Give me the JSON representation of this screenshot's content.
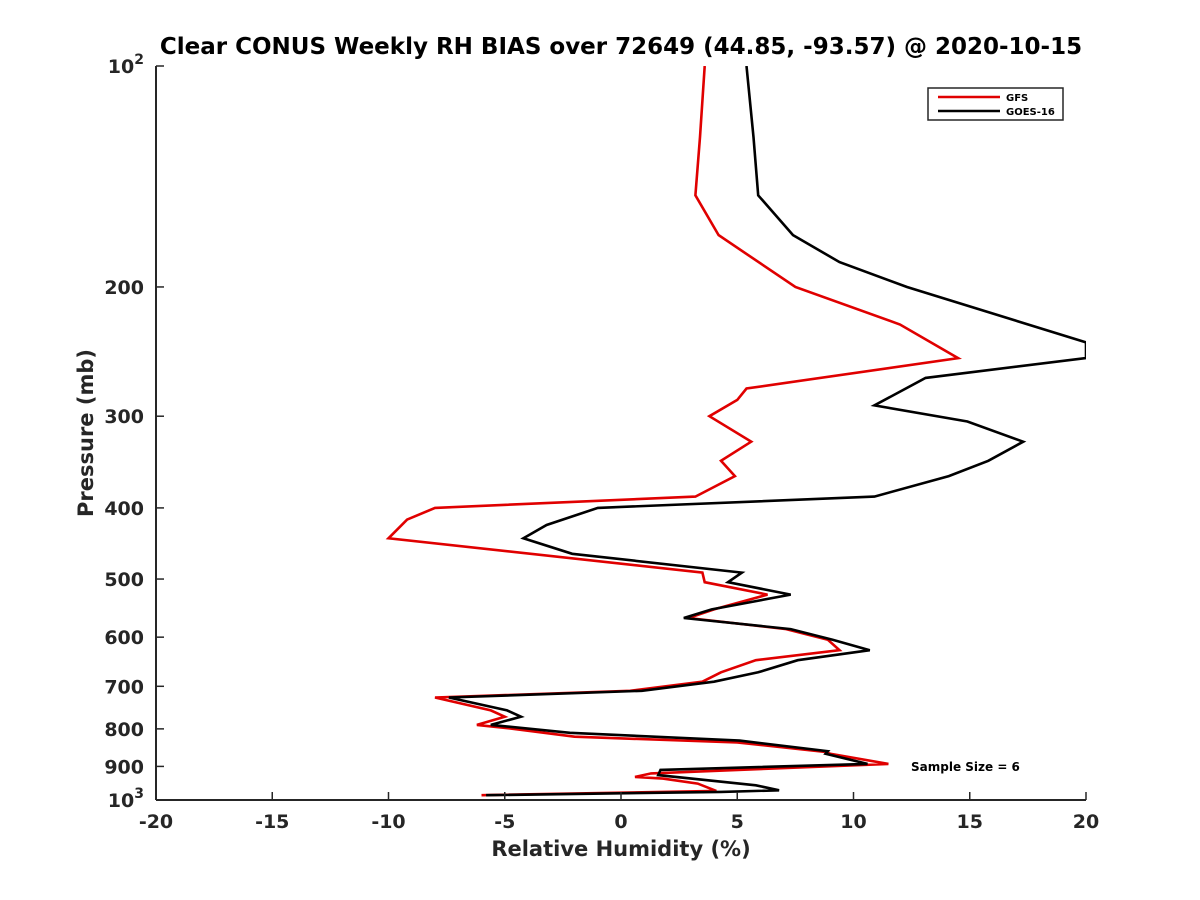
{
  "chart_data": {
    "type": "line",
    "title": "Clear CONUS Weekly RH BIAS over 72649 (44.85, -93.57) @ 2020-10-15",
    "xlabel": "Relative Humidity (%)",
    "ylabel": "Pressure (mb)",
    "xlim": [
      -20,
      20
    ],
    "ylim": [
      100,
      1000
    ],
    "yscale": "log",
    "y_reversed": true,
    "x_ticks": [
      "-20",
      "-15",
      "-10",
      "-5",
      "0",
      "5",
      "10",
      "15",
      "20"
    ],
    "y_ticks": [
      {
        "value": 100,
        "base": "10",
        "exp": "2"
      },
      {
        "value": 200,
        "label": "200"
      },
      {
        "value": 300,
        "label": "300"
      },
      {
        "value": 400,
        "label": "400"
      },
      {
        "value": 500,
        "label": "500"
      },
      {
        "value": 600,
        "label": "600"
      },
      {
        "value": 700,
        "label": "700"
      },
      {
        "value": 800,
        "label": "800"
      },
      {
        "value": 900,
        "label": "900"
      },
      {
        "value": 1000,
        "base": "10",
        "exp": "3"
      }
    ],
    "grid": false,
    "legend_position": "top-right",
    "annotation": "Sample Size = 6",
    "series": [
      {
        "name": "GFS",
        "color": "#e00000",
        "points": [
          {
            "x": 3.6,
            "y": 100
          },
          {
            "x": 3.4,
            "y": 125
          },
          {
            "x": 3.2,
            "y": 150
          },
          {
            "x": 4.2,
            "y": 170
          },
          {
            "x": 7.5,
            "y": 200
          },
          {
            "x": 12.0,
            "y": 225
          },
          {
            "x": 14.5,
            "y": 250
          },
          {
            "x": 5.4,
            "y": 275
          },
          {
            "x": 5.0,
            "y": 285
          },
          {
            "x": 3.8,
            "y": 300
          },
          {
            "x": 5.6,
            "y": 325
          },
          {
            "x": 4.3,
            "y": 345
          },
          {
            "x": 4.9,
            "y": 362
          },
          {
            "x": 3.2,
            "y": 386
          },
          {
            "x": -8.0,
            "y": 400
          },
          {
            "x": -9.2,
            "y": 415
          },
          {
            "x": -10.0,
            "y": 440
          },
          {
            "x": 3.5,
            "y": 490
          },
          {
            "x": 3.6,
            "y": 505
          },
          {
            "x": 6.3,
            "y": 525
          },
          {
            "x": 4.0,
            "y": 550
          },
          {
            "x": 2.9,
            "y": 565
          },
          {
            "x": 7.1,
            "y": 585
          },
          {
            "x": 8.9,
            "y": 605
          },
          {
            "x": 9.4,
            "y": 625
          },
          {
            "x": 5.8,
            "y": 645
          },
          {
            "x": 4.3,
            "y": 670
          },
          {
            "x": 3.5,
            "y": 690
          },
          {
            "x": 0.4,
            "y": 710
          },
          {
            "x": -8.0,
            "y": 725
          },
          {
            "x": -5.6,
            "y": 755
          },
          {
            "x": -5.0,
            "y": 770
          },
          {
            "x": -6.2,
            "y": 790
          },
          {
            "x": -4.6,
            "y": 800
          },
          {
            "x": -2.0,
            "y": 820
          },
          {
            "x": 5.0,
            "y": 835
          },
          {
            "x": 8.8,
            "y": 860
          },
          {
            "x": 9.0,
            "y": 865
          },
          {
            "x": 11.5,
            "y": 893
          },
          {
            "x": 1.3,
            "y": 920
          },
          {
            "x": 0.6,
            "y": 930
          },
          {
            "x": 1.8,
            "y": 935
          },
          {
            "x": 3.3,
            "y": 950
          },
          {
            "x": 4.1,
            "y": 972
          },
          {
            "x": -6.0,
            "y": 985
          }
        ]
      },
      {
        "name": "GOES-16",
        "color": "#000000",
        "points": [
          {
            "x": 5.4,
            "y": 100
          },
          {
            "x": 5.7,
            "y": 125
          },
          {
            "x": 5.9,
            "y": 150
          },
          {
            "x": 7.4,
            "y": 170
          },
          {
            "x": 9.4,
            "y": 185
          },
          {
            "x": 12.3,
            "y": 200
          },
          {
            "x": 20.0,
            "y": 238
          },
          {
            "x": 20.0,
            "y": 250
          },
          {
            "x": 13.1,
            "y": 266
          },
          {
            "x": 10.9,
            "y": 290
          },
          {
            "x": 14.9,
            "y": 305
          },
          {
            "x": 17.3,
            "y": 325
          },
          {
            "x": 15.8,
            "y": 345
          },
          {
            "x": 14.1,
            "y": 362
          },
          {
            "x": 10.9,
            "y": 386
          },
          {
            "x": -1.0,
            "y": 400
          },
          {
            "x": -3.2,
            "y": 422
          },
          {
            "x": -4.2,
            "y": 440
          },
          {
            "x": -2.1,
            "y": 462
          },
          {
            "x": 5.2,
            "y": 490
          },
          {
            "x": 4.6,
            "y": 505
          },
          {
            "x": 7.3,
            "y": 525
          },
          {
            "x": 3.9,
            "y": 550
          },
          {
            "x": 2.7,
            "y": 565
          },
          {
            "x": 7.3,
            "y": 585
          },
          {
            "x": 9.1,
            "y": 605
          },
          {
            "x": 10.7,
            "y": 625
          },
          {
            "x": 7.6,
            "y": 645
          },
          {
            "x": 5.9,
            "y": 670
          },
          {
            "x": 4.0,
            "y": 690
          },
          {
            "x": 0.9,
            "y": 710
          },
          {
            "x": -7.4,
            "y": 725
          },
          {
            "x": -4.9,
            "y": 755
          },
          {
            "x": -4.3,
            "y": 770
          },
          {
            "x": -5.6,
            "y": 790
          },
          {
            "x": -2.2,
            "y": 810
          },
          {
            "x": 5.1,
            "y": 830
          },
          {
            "x": 8.9,
            "y": 858
          },
          {
            "x": 8.8,
            "y": 865
          },
          {
            "x": 10.6,
            "y": 893
          },
          {
            "x": 1.7,
            "y": 910
          },
          {
            "x": 1.6,
            "y": 925
          },
          {
            "x": 5.8,
            "y": 955
          },
          {
            "x": 6.8,
            "y": 970
          },
          {
            "x": 4.3,
            "y": 975
          },
          {
            "x": -5.8,
            "y": 985
          }
        ]
      }
    ]
  }
}
